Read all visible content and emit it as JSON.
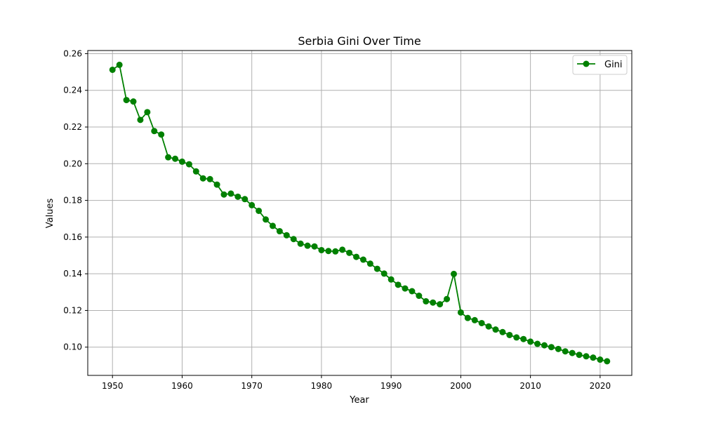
{
  "chart_data": {
    "type": "line",
    "title": "Serbia Gini Over Time",
    "xlabel": "Year",
    "ylabel": "Values",
    "xlim": [
      1946.45,
      2024.55
    ],
    "ylim": [
      0.0846,
      0.2617
    ],
    "xticks": [
      1950,
      1960,
      1970,
      1980,
      1990,
      2000,
      2010,
      2020
    ],
    "yticks": [
      0.1,
      0.12,
      0.14,
      0.16,
      0.18,
      0.2,
      0.22,
      0.24,
      0.26
    ],
    "ytick_labels": [
      "0.10",
      "0.12",
      "0.14",
      "0.16",
      "0.18",
      "0.20",
      "0.22",
      "0.24",
      "0.26"
    ],
    "grid": true,
    "legend_position": "top-right",
    "series": [
      {
        "name": "Gini",
        "color": "#008000",
        "marker": "circle",
        "x": [
          1950,
          1951,
          1952,
          1953,
          1954,
          1955,
          1956,
          1957,
          1958,
          1959,
          1960,
          1961,
          1962,
          1963,
          1964,
          1965,
          1966,
          1967,
          1968,
          1969,
          1970,
          1971,
          1972,
          1973,
          1974,
          1975,
          1976,
          1977,
          1978,
          1979,
          1980,
          1981,
          1982,
          1983,
          1984,
          1985,
          1986,
          1987,
          1988,
          1989,
          1990,
          1991,
          1992,
          1993,
          1994,
          1995,
          1996,
          1997,
          1998,
          1999,
          2000,
          2001,
          2002,
          2003,
          2004,
          2005,
          2006,
          2007,
          2008,
          2009,
          2010,
          2011,
          2012,
          2013,
          2014,
          2015,
          2016,
          2017,
          2018,
          2019,
          2020,
          2021
        ],
        "y": [
          0.2512,
          0.2539,
          0.2347,
          0.2339,
          0.2239,
          0.2281,
          0.2178,
          0.2159,
          0.2035,
          0.2027,
          0.2011,
          0.1997,
          0.1958,
          0.192,
          0.1916,
          0.1886,
          0.1832,
          0.1837,
          0.182,
          0.1807,
          0.1774,
          0.1743,
          0.1696,
          0.1661,
          0.1632,
          0.161,
          0.1589,
          0.1564,
          0.1553,
          0.1549,
          0.1529,
          0.1524,
          0.1522,
          0.1531,
          0.1514,
          0.1492,
          0.1477,
          0.1455,
          0.1427,
          0.1401,
          0.1369,
          0.134,
          0.132,
          0.1305,
          0.128,
          0.125,
          0.1243,
          0.1234,
          0.1262,
          0.1399,
          0.1189,
          0.1159,
          0.1147,
          0.1131,
          0.1113,
          0.1096,
          0.1082,
          0.1066,
          0.1053,
          0.1044,
          0.103,
          0.1018,
          0.101,
          0.1,
          0.099,
          0.0977,
          0.0968,
          0.0958,
          0.095,
          0.0943,
          0.0932,
          0.0923
        ]
      }
    ]
  }
}
